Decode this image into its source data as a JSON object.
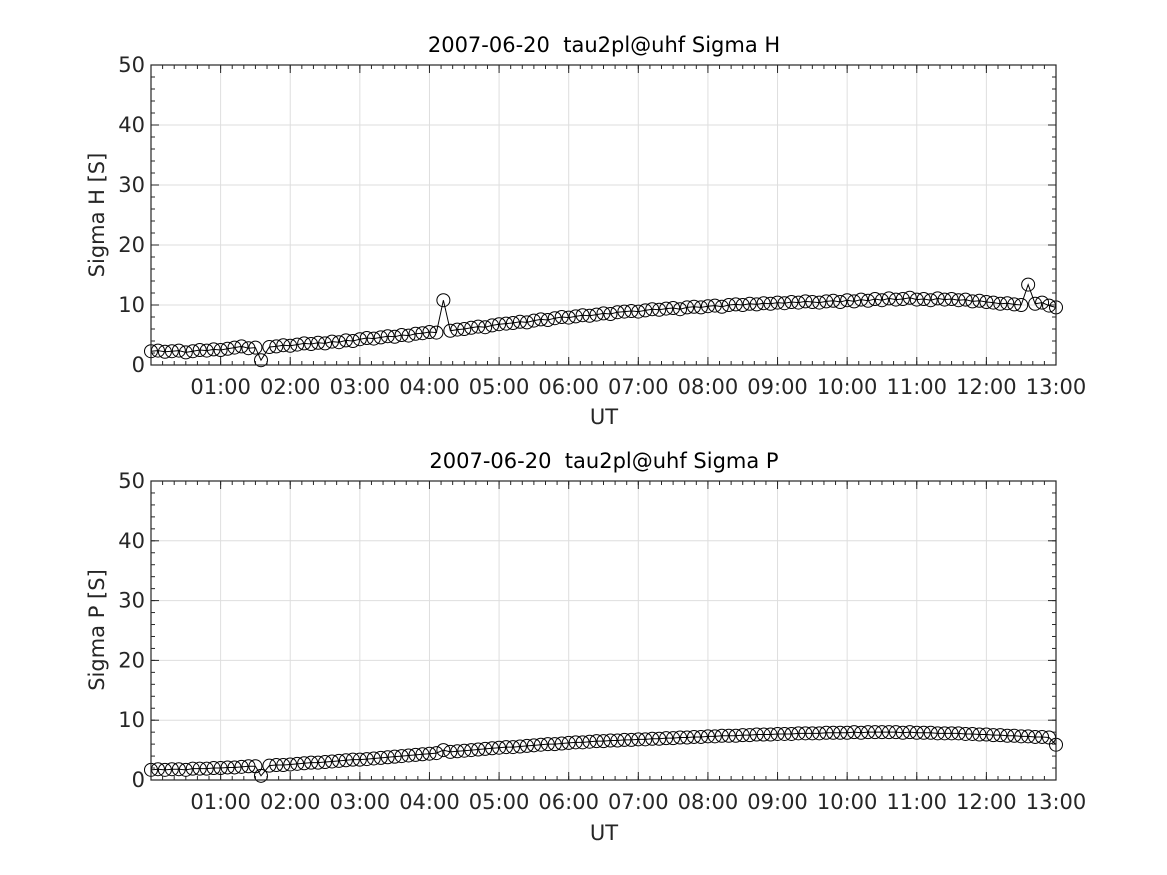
{
  "chart_data": [
    {
      "type": "line",
      "title": "2007-06-20  tau2pl@uhf Sigma H",
      "xlabel": "UT",
      "ylabel": "Sigma H [S]",
      "x_unit": "hours UT",
      "xlim": [
        0.0,
        13.0
      ],
      "ylim": [
        0,
        50
      ],
      "xticks": [
        1,
        2,
        3,
        4,
        5,
        6,
        7,
        8,
        9,
        10,
        11,
        12,
        13
      ],
      "xtick_labels": [
        "01:00",
        "02:00",
        "03:00",
        "04:00",
        "05:00",
        "06:00",
        "07:00",
        "08:00",
        "09:00",
        "10:00",
        "11:00",
        "12:00",
        "13:00"
      ],
      "yticks": [
        0,
        10,
        20,
        30,
        40,
        50
      ],
      "ytick_labels": [
        "0",
        "10",
        "20",
        "30",
        "40",
        "50"
      ],
      "grid": true,
      "marker": "open-circle",
      "line_color": "#000000",
      "series": [
        {
          "x": [
            0.0,
            0.1,
            0.2,
            0.3,
            0.4,
            0.5,
            0.6,
            0.7,
            0.8,
            0.9,
            1.0,
            1.1,
            1.2,
            1.3,
            1.4,
            1.5,
            1.58,
            1.7,
            1.8,
            1.9,
            2.0,
            2.1,
            2.2,
            2.3,
            2.4,
            2.5,
            2.6,
            2.7,
            2.8,
            2.9,
            3.0,
            3.1,
            3.2,
            3.3,
            3.4,
            3.5,
            3.6,
            3.7,
            3.8,
            3.9,
            4.0,
            4.1,
            4.2,
            4.3,
            4.4,
            4.5,
            4.6,
            4.7,
            4.8,
            4.9,
            5.0,
            5.1,
            5.2,
            5.3,
            5.4,
            5.5,
            5.6,
            5.7,
            5.8,
            5.9,
            6.0,
            6.1,
            6.2,
            6.3,
            6.4,
            6.5,
            6.6,
            6.7,
            6.8,
            6.9,
            7.0,
            7.1,
            7.2,
            7.3,
            7.4,
            7.5,
            7.6,
            7.7,
            7.8,
            7.9,
            8.0,
            8.1,
            8.2,
            8.3,
            8.4,
            8.5,
            8.6,
            8.7,
            8.8,
            8.9,
            9.0,
            9.1,
            9.2,
            9.3,
            9.4,
            9.5,
            9.6,
            9.7,
            9.8,
            9.9,
            10.0,
            10.1,
            10.2,
            10.3,
            10.4,
            10.5,
            10.6,
            10.7,
            10.8,
            10.9,
            11.0,
            11.1,
            11.2,
            11.3,
            11.4,
            11.5,
            11.6,
            11.7,
            11.8,
            11.9,
            12.0,
            12.1,
            12.2,
            12.3,
            12.4,
            12.5,
            12.6,
            12.7,
            12.8,
            12.9,
            13.0
          ],
          "y": [
            2.3,
            2.4,
            2.2,
            2.3,
            2.4,
            2.1,
            2.3,
            2.5,
            2.4,
            2.6,
            2.5,
            2.7,
            2.9,
            3.1,
            2.8,
            2.9,
            0.8,
            3.0,
            3.1,
            3.3,
            3.2,
            3.4,
            3.6,
            3.5,
            3.7,
            3.6,
            3.9,
            3.8,
            4.1,
            4.0,
            4.3,
            4.5,
            4.4,
            4.6,
            4.8,
            4.7,
            5.0,
            4.9,
            5.2,
            5.3,
            5.5,
            5.4,
            10.8,
            5.7,
            5.9,
            6.0,
            6.2,
            6.4,
            6.3,
            6.6,
            6.8,
            6.9,
            7.0,
            7.2,
            7.1,
            7.4,
            7.6,
            7.5,
            7.8,
            8.0,
            7.9,
            8.1,
            8.3,
            8.2,
            8.4,
            8.6,
            8.5,
            8.8,
            8.9,
            9.0,
            8.9,
            9.1,
            9.3,
            9.2,
            9.4,
            9.5,
            9.3,
            9.6,
            9.7,
            9.6,
            9.8,
            9.9,
            9.7,
            10.0,
            10.1,
            10.0,
            10.2,
            10.1,
            10.3,
            10.2,
            10.4,
            10.3,
            10.5,
            10.4,
            10.6,
            10.5,
            10.4,
            10.6,
            10.7,
            10.5,
            10.8,
            10.6,
            10.9,
            10.7,
            11.0,
            10.8,
            11.1,
            10.9,
            11.0,
            11.2,
            10.9,
            11.0,
            10.8,
            11.1,
            10.9,
            11.0,
            10.8,
            10.9,
            10.6,
            10.7,
            10.5,
            10.4,
            10.2,
            10.3,
            10.1,
            10.0,
            13.4,
            10.2,
            10.4,
            9.9,
            9.6
          ]
        }
      ]
    },
    {
      "type": "line",
      "title": "2007-06-20  tau2pl@uhf Sigma P",
      "xlabel": "UT",
      "ylabel": "Sigma P [S]",
      "x_unit": "hours UT",
      "xlim": [
        0.0,
        13.0
      ],
      "ylim": [
        0,
        50
      ],
      "xticks": [
        1,
        2,
        3,
        4,
        5,
        6,
        7,
        8,
        9,
        10,
        11,
        12,
        13
      ],
      "xtick_labels": [
        "01:00",
        "02:00",
        "03:00",
        "04:00",
        "05:00",
        "06:00",
        "07:00",
        "08:00",
        "09:00",
        "10:00",
        "11:00",
        "12:00",
        "13:00"
      ],
      "yticks": [
        0,
        10,
        20,
        30,
        40,
        50
      ],
      "ytick_labels": [
        "0",
        "10",
        "20",
        "30",
        "40",
        "50"
      ],
      "grid": true,
      "marker": "open-circle",
      "line_color": "#000000",
      "series": [
        {
          "x": [
            0.0,
            0.1,
            0.2,
            0.3,
            0.4,
            0.5,
            0.6,
            0.7,
            0.8,
            0.9,
            1.0,
            1.1,
            1.2,
            1.3,
            1.4,
            1.5,
            1.58,
            1.7,
            1.8,
            1.9,
            2.0,
            2.1,
            2.2,
            2.3,
            2.4,
            2.5,
            2.6,
            2.7,
            2.8,
            2.9,
            3.0,
            3.1,
            3.2,
            3.3,
            3.4,
            3.5,
            3.6,
            3.7,
            3.8,
            3.9,
            4.0,
            4.1,
            4.2,
            4.3,
            4.4,
            4.5,
            4.6,
            4.7,
            4.8,
            4.9,
            5.0,
            5.1,
            5.2,
            5.3,
            5.4,
            5.5,
            5.6,
            5.7,
            5.8,
            5.9,
            6.0,
            6.1,
            6.2,
            6.3,
            6.4,
            6.5,
            6.6,
            6.7,
            6.8,
            6.9,
            7.0,
            7.1,
            7.2,
            7.3,
            7.4,
            7.5,
            7.6,
            7.7,
            7.8,
            7.9,
            8.0,
            8.1,
            8.2,
            8.3,
            8.4,
            8.5,
            8.6,
            8.7,
            8.8,
            8.9,
            9.0,
            9.1,
            9.2,
            9.3,
            9.4,
            9.5,
            9.6,
            9.7,
            9.8,
            9.9,
            10.0,
            10.1,
            10.2,
            10.3,
            10.4,
            10.5,
            10.6,
            10.7,
            10.8,
            10.9,
            11.0,
            11.1,
            11.2,
            11.3,
            11.4,
            11.5,
            11.6,
            11.7,
            11.8,
            11.9,
            12.0,
            12.1,
            12.2,
            12.3,
            12.4,
            12.5,
            12.6,
            12.7,
            12.8,
            12.9,
            13.0
          ],
          "y": [
            1.7,
            1.8,
            1.7,
            1.8,
            1.8,
            1.7,
            1.9,
            1.9,
            1.9,
            2.0,
            2.0,
            2.1,
            2.1,
            2.2,
            2.3,
            2.3,
            0.7,
            2.4,
            2.5,
            2.5,
            2.6,
            2.7,
            2.8,
            2.9,
            2.9,
            3.0,
            3.1,
            3.2,
            3.3,
            3.4,
            3.4,
            3.5,
            3.6,
            3.7,
            3.8,
            3.9,
            4.0,
            4.1,
            4.2,
            4.3,
            4.4,
            4.5,
            5.0,
            4.7,
            4.8,
            4.9,
            5.0,
            5.1,
            5.2,
            5.3,
            5.4,
            5.5,
            5.5,
            5.6,
            5.7,
            5.8,
            5.9,
            6.0,
            6.0,
            6.1,
            6.2,
            6.3,
            6.3,
            6.4,
            6.5,
            6.5,
            6.6,
            6.6,
            6.7,
            6.7,
            6.8,
            6.8,
            6.9,
            6.9,
            7.0,
            7.0,
            7.1,
            7.1,
            7.2,
            7.2,
            7.3,
            7.3,
            7.4,
            7.4,
            7.4,
            7.5,
            7.5,
            7.6,
            7.6,
            7.6,
            7.7,
            7.7,
            7.7,
            7.8,
            7.8,
            7.8,
            7.8,
            7.9,
            7.9,
            7.9,
            7.9,
            8.0,
            7.9,
            8.0,
            8.0,
            8.0,
            8.0,
            8.0,
            7.9,
            8.0,
            7.9,
            7.9,
            7.9,
            7.8,
            7.8,
            7.8,
            7.8,
            7.7,
            7.7,
            7.6,
            7.6,
            7.5,
            7.5,
            7.4,
            7.4,
            7.3,
            7.3,
            7.2,
            7.2,
            7.1,
            5.9
          ]
        }
      ]
    }
  ]
}
